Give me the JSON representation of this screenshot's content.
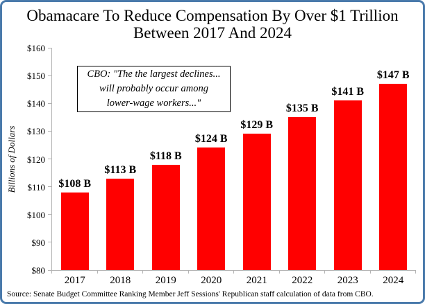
{
  "window": {
    "border_color": "#4a7aab",
    "background_color": "#ffffff"
  },
  "title": {
    "lines": [
      "Obamacare To Reduce Compensation By Over $1 Trillion",
      "Between 2017 And 2024"
    ]
  },
  "annotation": {
    "lines": [
      "CBO: \"The the largest declines...",
      "will probably occur among",
      "lower-wage workers...\""
    ]
  },
  "source": "Source: Senate Budget Committee Ranking Member Jeff Sessions' Republican staff calculation of data from CBO.",
  "chart_data": {
    "type": "bar",
    "title": "Obamacare To Reduce Compensation By Over $1 Trillion Between 2017 And 2024",
    "categories": [
      "2017",
      "2018",
      "2019",
      "2020",
      "2021",
      "2022",
      "2023",
      "2024"
    ],
    "values": [
      108,
      113,
      118,
      124,
      129,
      135,
      141,
      147
    ],
    "bar_labels": [
      "$108 B",
      "$113 B",
      "$118 B",
      "$124 B",
      "$129 B",
      "$135 B",
      "$141 B",
      "$147 B"
    ],
    "xlabel": "",
    "ylabel": "Billions of Dollars",
    "ylim": [
      80,
      160
    ],
    "ytick_step": 10,
    "ytick_labels": [
      "$80",
      "$90",
      "$100",
      "$110",
      "$120",
      "$130",
      "$140",
      "$150",
      "$160"
    ],
    "bar_color": "#ff0000",
    "axis_color": "#b3b3b3",
    "grid": false,
    "legend": "none"
  }
}
